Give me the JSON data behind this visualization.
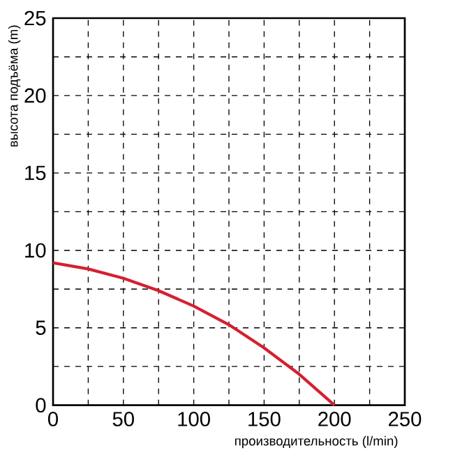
{
  "chart_data": {
    "type": "line",
    "xlabel": "производительность (l/min)",
    "ylabel": "высота подъёма (m)",
    "x": [
      0,
      25,
      50,
      75,
      100,
      125,
      150,
      175,
      200
    ],
    "series": [
      {
        "color": "#d42030",
        "values": [
          9.2,
          8.8,
          8.2,
          7.4,
          6.4,
          5.2,
          3.7,
          2.0,
          0
        ]
      }
    ],
    "xlim": [
      0,
      250
    ],
    "ylim": [
      0,
      25
    ],
    "xticks": [
      0,
      {
        "value": 25,
        "label": null
      },
      50,
      {
        "value": 75,
        "label": null
      },
      100,
      {
        "value": 125,
        "label": null
      },
      150,
      {
        "value": 175,
        "label": null
      },
      200,
      {
        "value": 225,
        "label": null
      },
      250
    ],
    "yticks": [
      0,
      {
        "value": 2.5,
        "label": null
      },
      5,
      {
        "value": 7.5,
        "label": null
      },
      10,
      {
        "value": 12.5,
        "label": null
      },
      15,
      {
        "value": 17.5,
        "label": null
      },
      20,
      {
        "value": 22.5,
        "label": null
      },
      25
    ],
    "grid": true,
    "marker": "none",
    "line_style": "solid"
  }
}
